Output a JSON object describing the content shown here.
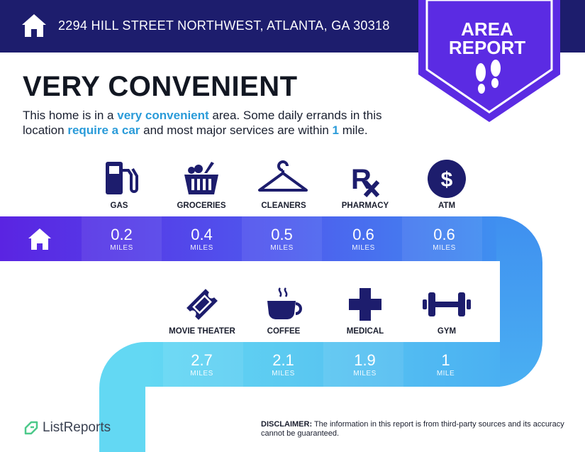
{
  "header": {
    "address": "2294 HILL STREET NORTHWEST, ATLANTA, GA 30318",
    "badge_line1": "AREA",
    "badge_line2": "REPORT"
  },
  "headline": "VERY CONVENIENT",
  "description": {
    "part1": "This home is in a ",
    "highlight1": "very convenient",
    "part2": " area. Some daily errands in this location ",
    "highlight2": "require a car",
    "part3": " and most major services are within ",
    "highlight3": "1",
    "part4": " mile."
  },
  "row1": [
    {
      "label": "GAS",
      "distance": "0.2",
      "unit": "MILES",
      "icon": "gas-pump-icon"
    },
    {
      "label": "GROCERIES",
      "distance": "0.4",
      "unit": "MILES",
      "icon": "grocery-basket-icon"
    },
    {
      "label": "CLEANERS",
      "distance": "0.5",
      "unit": "MILES",
      "icon": "hanger-icon"
    },
    {
      "label": "PHARMACY",
      "distance": "0.6",
      "unit": "MILES",
      "icon": "rx-icon"
    },
    {
      "label": "ATM",
      "distance": "0.6",
      "unit": "MILES",
      "icon": "dollar-coin-icon"
    }
  ],
  "row2": [
    {
      "label": "MOVIE THEATER",
      "distance": "2.7",
      "unit": "MILES",
      "icon": "ticket-icon"
    },
    {
      "label": "COFFEE",
      "distance": "2.1",
      "unit": "MILES",
      "icon": "coffee-cup-icon"
    },
    {
      "label": "MEDICAL",
      "distance": "1.9",
      "unit": "MILES",
      "icon": "medical-cross-icon"
    },
    {
      "label": "GYM",
      "distance": "1",
      "unit": "MILE",
      "icon": "dumbbell-icon"
    }
  ],
  "footer": {
    "brand": "ListReports",
    "disclaimer_label": "DISCLAIMER:",
    "disclaimer_text": " The information in this report is from third-party sources and its accuracy cannot be guaranteed."
  },
  "colors": {
    "navy": "#1d1d6d",
    "purple": "#5b2be3",
    "accent": "#2a9bd9"
  }
}
